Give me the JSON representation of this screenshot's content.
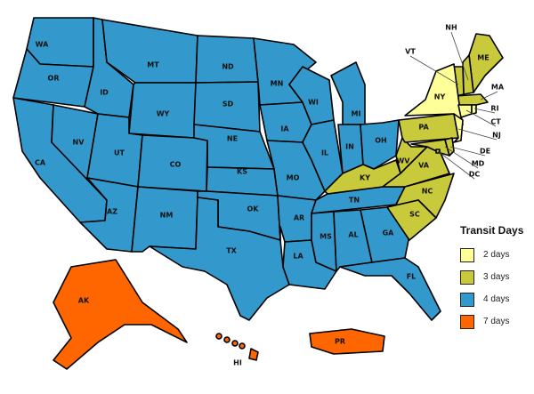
{
  "legend": {
    "title": "Transit Days",
    "items": [
      {
        "label": "2 days",
        "days": 2,
        "color": "#ffff99"
      },
      {
        "label": "3 days",
        "days": 3,
        "color": "#c9c93c"
      },
      {
        "label": "4 days",
        "days": 4,
        "color": "#3399cc"
      },
      {
        "label": "7 days",
        "days": 7,
        "color": "#ff6600"
      }
    ]
  },
  "states": [
    {
      "code": "WA",
      "days": 4
    },
    {
      "code": "OR",
      "days": 4
    },
    {
      "code": "CA",
      "days": 4
    },
    {
      "code": "NV",
      "days": 4
    },
    {
      "code": "ID",
      "days": 4
    },
    {
      "code": "MT",
      "days": 4
    },
    {
      "code": "WY",
      "days": 4
    },
    {
      "code": "UT",
      "days": 4
    },
    {
      "code": "CO",
      "days": 4
    },
    {
      "code": "AZ",
      "days": 4
    },
    {
      "code": "NM",
      "days": 4
    },
    {
      "code": "ND",
      "days": 4
    },
    {
      "code": "SD",
      "days": 4
    },
    {
      "code": "NE",
      "days": 4
    },
    {
      "code": "KS",
      "days": 4
    },
    {
      "code": "OK",
      "days": 4
    },
    {
      "code": "TX",
      "days": 4
    },
    {
      "code": "MN",
      "days": 4
    },
    {
      "code": "IA",
      "days": 4
    },
    {
      "code": "MO",
      "days": 4
    },
    {
      "code": "AR",
      "days": 4
    },
    {
      "code": "LA",
      "days": 4
    },
    {
      "code": "WI",
      "days": 4
    },
    {
      "code": "IL",
      "days": 4
    },
    {
      "code": "MI",
      "days": 4
    },
    {
      "code": "IN",
      "days": 4
    },
    {
      "code": "OH",
      "days": 4
    },
    {
      "code": "TN",
      "days": 4
    },
    {
      "code": "MS",
      "days": 4
    },
    {
      "code": "AL",
      "days": 4
    },
    {
      "code": "GA",
      "days": 4
    },
    {
      "code": "FL",
      "days": 4
    },
    {
      "code": "KY",
      "days": 3
    },
    {
      "code": "WV",
      "days": 3
    },
    {
      "code": "VA",
      "days": 3
    },
    {
      "code": "NC",
      "days": 3
    },
    {
      "code": "SC",
      "days": 3
    },
    {
      "code": "PA",
      "days": 3
    },
    {
      "code": "MD",
      "days": 3
    },
    {
      "code": "DE",
      "days": 3
    },
    {
      "code": "DC",
      "days": 3
    },
    {
      "code": "ME",
      "days": 3
    },
    {
      "code": "NH",
      "days": 3
    },
    {
      "code": "VT",
      "days": 3
    },
    {
      "code": "MA",
      "days": 3
    },
    {
      "code": "NY",
      "days": 2
    },
    {
      "code": "NJ",
      "days": 2
    },
    {
      "code": "CT",
      "days": 2
    },
    {
      "code": "RI",
      "days": 2
    },
    {
      "code": "AK",
      "days": 7
    },
    {
      "code": "HI",
      "days": 7
    },
    {
      "code": "PR",
      "days": 7
    }
  ]
}
